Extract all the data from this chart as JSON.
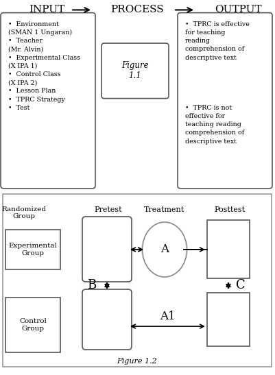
{
  "fig_width": 4.01,
  "fig_height": 5.47,
  "dpi": 100,
  "bg_color": "#ffffff",
  "top_header": [
    "INPUT",
    "PROCESS",
    "OUTPUT"
  ],
  "input_bullets": [
    "Environment\n(SMAN 1 Ungaran)",
    "Teacher\n(Mr. Alvin)",
    "Experimental Class\n(X IPA 1)",
    "Control Class\n(X IPA 2)",
    "Lesson Plan",
    "TPRC Strategy",
    "Test"
  ],
  "output_bullet1": "TPRC is effective\nfor teaching\nreading\ncomprehension of\ndescriptive text",
  "output_bullet2": "TPRC is not\neffective for\nteaching reading\ncomprehension of\ndescriptive text",
  "process_label": "Figure\n1.1",
  "fig2_labels": {
    "randomized_group": "Randomized\nGroup",
    "pretest": "Pretest",
    "treatment": "Treatment",
    "posttest": "Posttest",
    "experimental": "Experimental\nGroup",
    "control": "Control\nGroup",
    "A": "A",
    "B": "B",
    "C": "C",
    "A1": "A1",
    "figure_caption": "Figure 1.2"
  },
  "border_color": "#555555",
  "text_color": "#000000"
}
